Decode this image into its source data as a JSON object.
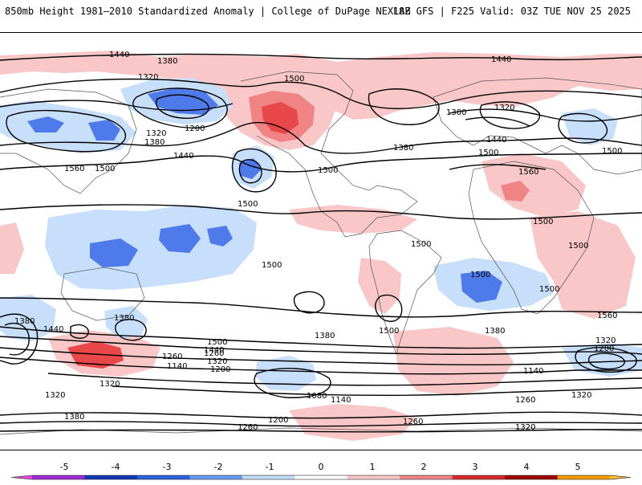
{
  "header": {
    "left_title": "850mb Height 1981–2010 Standardized Anomaly | College of DuPage NEXLAB",
    "right_title": "18Z GFS | F225 Valid: 03Z TUE NOV 25 2025"
  },
  "map": {
    "field": "850mb height standardized anomaly",
    "contour_labels": [
      "1440",
      "1380",
      "1320",
      "1200",
      "1320",
      "1380",
      "1440",
      "1560",
      "1500",
      "1500",
      "1500",
      "1500",
      "1440",
      "1500",
      "1380",
      "1320",
      "1440",
      "1380",
      "1500",
      "1560",
      "1500",
      "1500",
      "1500",
      "1500",
      "1500",
      "1500",
      "1500",
      "1560",
      "1380",
      "1440",
      "1380",
      "1380",
      "1260",
      "1140",
      "1200",
      "1320",
      "1260",
      "1320",
      "1500",
      "1440",
      "1380",
      "1320",
      "1200",
      "1140",
      "1320",
      "1260",
      "1380",
      "1080",
      "1140",
      "1200",
      "1260",
      "1320",
      "1260",
      "1320"
    ],
    "colors": {
      "neg_light": "#c7dffa",
      "neg_mid": "#4f7bea",
      "pos_light": "#f9c7c7",
      "pos_mid": "#f08383",
      "pos_strong": "#e8484a"
    }
  },
  "colorbar": {
    "ticks": [
      "-5",
      "-4",
      "-3",
      "-2",
      "-1",
      "0",
      "1",
      "2",
      "3",
      "4",
      "5"
    ],
    "segments": [
      "#e34fe3",
      "#9d2bd6",
      "#1438b8",
      "#2c63e0",
      "#6a9cf2",
      "#c3dcfa",
      "#ffffff",
      "#fbc8c8",
      "#f08585",
      "#d82a2a",
      "#a00000",
      "#f59b00",
      "#ffc43a"
    ]
  }
}
